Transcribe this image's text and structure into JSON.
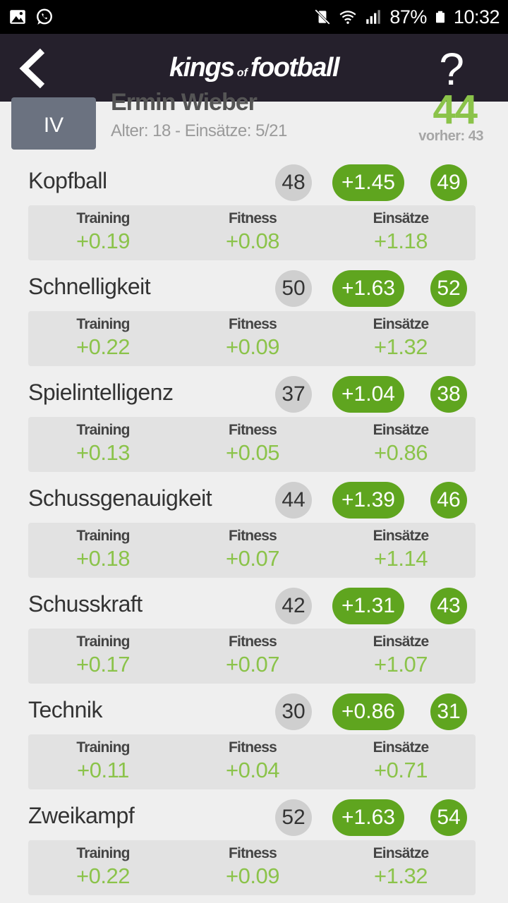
{
  "status_bar": {
    "left_icons": [
      "image-icon",
      "whatsapp-icon"
    ],
    "right_icons": [
      "mute-vibrate-icon",
      "wifi-icon",
      "signal-icon",
      "battery-icon"
    ],
    "battery": "87%",
    "time": "10:32"
  },
  "app_bar": {
    "logo_kings": "kings",
    "logo_of": "of",
    "logo_football": "football",
    "help_label": "?"
  },
  "player": {
    "position": "IV",
    "name": "Ermin Wieber",
    "meta": "Alter: 18 - Einsätze: 5/21",
    "rating": "44",
    "previous": "vorher: 43"
  },
  "labels": {
    "training": "Training",
    "fitness": "Fitness",
    "einsaetze": "Einsätze"
  },
  "colors": {
    "accent_green": "#5fa51f",
    "light_green": "#8bc34a",
    "header_bg": "#25202c"
  },
  "attributes": [
    {
      "name": "Kopfball",
      "old": "48",
      "gain": "+1.45",
      "new": "49",
      "training": "+0.19",
      "fitness": "+0.08",
      "einsaetze": "+1.18"
    },
    {
      "name": "Schnelligkeit",
      "old": "50",
      "gain": "+1.63",
      "new": "52",
      "training": "+0.22",
      "fitness": "+0.09",
      "einsaetze": "+1.32"
    },
    {
      "name": "Spielintelligenz",
      "old": "37",
      "gain": "+1.04",
      "new": "38",
      "training": "+0.13",
      "fitness": "+0.05",
      "einsaetze": "+0.86"
    },
    {
      "name": "Schussgenauigkeit",
      "old": "44",
      "gain": "+1.39",
      "new": "46",
      "training": "+0.18",
      "fitness": "+0.07",
      "einsaetze": "+1.14"
    },
    {
      "name": "Schusskraft",
      "old": "42",
      "gain": "+1.31",
      "new": "43",
      "training": "+0.17",
      "fitness": "+0.07",
      "einsaetze": "+1.07"
    },
    {
      "name": "Technik",
      "old": "30",
      "gain": "+0.86",
      "new": "31",
      "training": "+0.11",
      "fitness": "+0.04",
      "einsaetze": "+0.71"
    },
    {
      "name": "Zweikampf",
      "old": "52",
      "gain": "+1.63",
      "new": "54",
      "training": "+0.22",
      "fitness": "+0.09",
      "einsaetze": "+1.32"
    }
  ]
}
